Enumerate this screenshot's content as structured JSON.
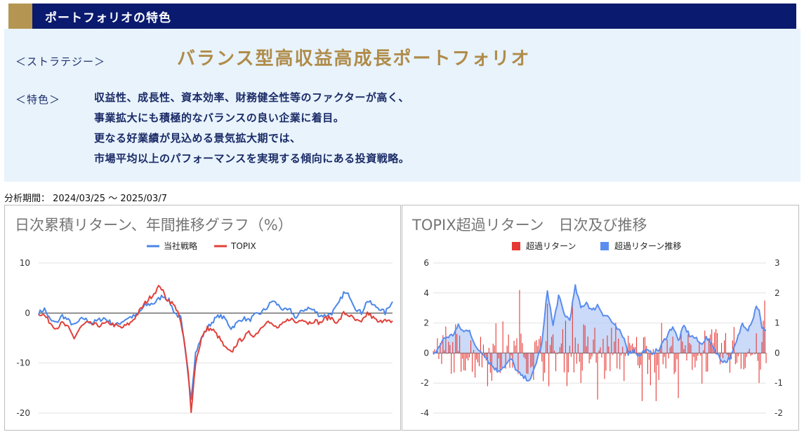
{
  "header": {
    "title": "ポートフォリオの特色"
  },
  "strategy": {
    "label": "＜ストラテジー＞",
    "value": "バランス型高収益高成長ポートフォリオ"
  },
  "features": {
    "label": "＜特色＞",
    "lines": [
      "収益性、成長性、資本効率、財務健全性等のファクターが高く、",
      "事業拡大にも積極的なバランスの良い企業に着目。",
      "更なる好業績が見込める景気拡大期では、",
      "市場平均以上のパフォーマンスを実現する傾向にある投資戦略。"
    ]
  },
  "period": "分析期間： 2024/03/25 ～ 2025/03/7",
  "colors": {
    "strategy": "#4a86e8",
    "topix": "#e0413a",
    "excess_bar": "#e53935",
    "excess_line": "#5b8def",
    "excess_fill": "#b8cef5"
  },
  "chart_data": [
    {
      "type": "line",
      "title": "日次累積リターン、年間推移グラフ（%）",
      "legend": [
        "当社戦略",
        "TOPIX"
      ],
      "legend_position": "top",
      "ylim": [
        -20,
        10
      ],
      "yticks": [
        10,
        0,
        -10,
        -20
      ],
      "n": 240,
      "series": [
        {
          "name": "当社戦略",
          "knots": [
            [
              0,
              0
            ],
            [
              4,
              0.8
            ],
            [
              8,
              -1.5
            ],
            [
              12,
              -2
            ],
            [
              16,
              -0.5
            ],
            [
              20,
              -1.5
            ],
            [
              24,
              -2.5
            ],
            [
              30,
              -1
            ],
            [
              36,
              -2
            ],
            [
              44,
              -1
            ],
            [
              52,
              -2.5
            ],
            [
              60,
              -1
            ],
            [
              66,
              -0.5
            ],
            [
              72,
              1.5
            ],
            [
              78,
              2
            ],
            [
              84,
              3.5
            ],
            [
              88,
              2.5
            ],
            [
              92,
              0
            ],
            [
              96,
              -1
            ],
            [
              100,
              -10
            ],
            [
              103,
              -17
            ],
            [
              106,
              -8
            ],
            [
              110,
              -5
            ],
            [
              114,
              -3
            ],
            [
              118,
              -1.5
            ],
            [
              122,
              -0.5
            ],
            [
              126,
              -1.2
            ],
            [
              130,
              -3
            ],
            [
              134,
              -2
            ],
            [
              138,
              -1
            ],
            [
              142,
              -1.5
            ],
            [
              146,
              -0.5
            ],
            [
              150,
              0
            ],
            [
              154,
              1
            ],
            [
              158,
              2.5
            ],
            [
              162,
              1.5
            ],
            [
              166,
              0.5
            ],
            [
              170,
              0.5
            ],
            [
              174,
              -1
            ],
            [
              178,
              0.5
            ],
            [
              182,
              1
            ],
            [
              186,
              0.5
            ],
            [
              190,
              -0.5
            ],
            [
              194,
              -0.5
            ],
            [
              198,
              0
            ],
            [
              202,
              1.5
            ],
            [
              206,
              4
            ],
            [
              210,
              3.5
            ],
            [
              214,
              1
            ],
            [
              218,
              0
            ],
            [
              222,
              2.5
            ],
            [
              226,
              1.5
            ],
            [
              230,
              1
            ],
            [
              234,
              0
            ],
            [
              238,
              2
            ],
            [
              240,
              2.3
            ]
          ]
        },
        {
          "name": "TOPIX",
          "knots": [
            [
              0,
              0
            ],
            [
              4,
              -0.5
            ],
            [
              8,
              -2
            ],
            [
              12,
              -3
            ],
            [
              16,
              -2
            ],
            [
              20,
              -3
            ],
            [
              24,
              -5
            ],
            [
              28,
              -3
            ],
            [
              32,
              -2
            ],
            [
              40,
              -2.5
            ],
            [
              48,
              -2
            ],
            [
              56,
              -3
            ],
            [
              62,
              -2
            ],
            [
              66,
              -0.5
            ],
            [
              72,
              2
            ],
            [
              78,
              4
            ],
            [
              82,
              5.5
            ],
            [
              86,
              3
            ],
            [
              90,
              2
            ],
            [
              94,
              0.5
            ],
            [
              98,
              -5
            ],
            [
              101,
              -12
            ],
            [
              103,
              -19.5
            ],
            [
              106,
              -10
            ],
            [
              110,
              -5
            ],
            [
              114,
              -3
            ],
            [
              118,
              -3.5
            ],
            [
              122,
              -5
            ],
            [
              126,
              -7
            ],
            [
              130,
              -8
            ],
            [
              134,
              -6
            ],
            [
              138,
              -5
            ],
            [
              142,
              -4
            ],
            [
              146,
              -4.5
            ],
            [
              150,
              -3
            ],
            [
              154,
              -1.5
            ],
            [
              158,
              -2.5
            ],
            [
              162,
              -3
            ],
            [
              166,
              -2
            ],
            [
              170,
              -1
            ],
            [
              174,
              -2
            ],
            [
              178,
              -1
            ],
            [
              182,
              -2
            ],
            [
              186,
              -1.5
            ],
            [
              190,
              -2
            ],
            [
              194,
              -1
            ],
            [
              198,
              -1
            ],
            [
              202,
              -2
            ],
            [
              206,
              0
            ],
            [
              210,
              -0.5
            ],
            [
              214,
              -1.5
            ],
            [
              218,
              -2
            ],
            [
              222,
              0
            ],
            [
              226,
              -1
            ],
            [
              230,
              -2
            ],
            [
              234,
              -1
            ],
            [
              238,
              -2
            ],
            [
              240,
              -1.8
            ]
          ]
        }
      ]
    },
    {
      "type": "bar+area",
      "title": "TOPIX超過リターン　日次及び推移",
      "legend": [
        "超過リターン",
        "超過リターン推移"
      ],
      "legend_position": "top",
      "ylim_left": [
        -4,
        6
      ],
      "yticks_left": [
        6,
        4,
        2,
        0,
        -2,
        -4
      ],
      "ylim_right": [
        -2,
        3
      ],
      "yticks_right": [
        3,
        2,
        1,
        0,
        -1,
        -2
      ],
      "n": 240,
      "bar_amplitude": 1.4,
      "bar_spikes": [
        [
          62,
          4.2
        ],
        [
          82,
          3.3
        ],
        [
          100,
          3.5
        ],
        [
          106,
          -2
        ],
        [
          118,
          -3.1
        ],
        [
          150,
          -3.2
        ],
        [
          160,
          -3.2
        ],
        [
          176,
          -3
        ],
        [
          234,
          -2
        ],
        [
          238,
          3.5
        ]
      ],
      "excess_trend_knots": [
        [
          0,
          -0.1
        ],
        [
          8,
          0.5
        ],
        [
          14,
          0.6
        ],
        [
          18,
          0.9
        ],
        [
          22,
          0.7
        ],
        [
          26,
          0.8
        ],
        [
          30,
          0.2
        ],
        [
          36,
          0
        ],
        [
          40,
          -0.3
        ],
        [
          46,
          -0.6
        ],
        [
          52,
          -0.4
        ],
        [
          56,
          -0.2
        ],
        [
          60,
          -0.6
        ],
        [
          64,
          -0.8
        ],
        [
          70,
          -0.9
        ],
        [
          74,
          -0.3
        ],
        [
          78,
          0.3
        ],
        [
          82,
          2.1
        ],
        [
          86,
          0.9
        ],
        [
          90,
          1.9
        ],
        [
          94,
          1.3
        ],
        [
          98,
          1.1
        ],
        [
          102,
          2.2
        ],
        [
          106,
          1.5
        ],
        [
          110,
          1.7
        ],
        [
          114,
          1.4
        ],
        [
          118,
          1.6
        ],
        [
          122,
          1.3
        ],
        [
          126,
          1.2
        ],
        [
          130,
          0.9
        ],
        [
          134,
          0.7
        ],
        [
          138,
          0.4
        ],
        [
          140,
          0
        ],
        [
          144,
          0.1
        ],
        [
          148,
          -0.1
        ],
        [
          152,
          0.1
        ],
        [
          156,
          0
        ],
        [
          162,
          0.1
        ],
        [
          168,
          0.6
        ],
        [
          172,
          0.9
        ],
        [
          176,
          0.4
        ],
        [
          180,
          0.9
        ],
        [
          184,
          0.6
        ],
        [
          188,
          0.5
        ],
        [
          192,
          0.3
        ],
        [
          196,
          0.5
        ],
        [
          200,
          0.3
        ],
        [
          206,
          -0.2
        ],
        [
          210,
          -0.3
        ],
        [
          214,
          -0.1
        ],
        [
          218,
          0.4
        ],
        [
          222,
          1
        ],
        [
          226,
          0.8
        ],
        [
          230,
          1.2
        ],
        [
          232,
          1.6
        ],
        [
          234,
          1.4
        ],
        [
          236,
          0.8
        ],
        [
          240,
          0.8
        ]
      ]
    }
  ]
}
